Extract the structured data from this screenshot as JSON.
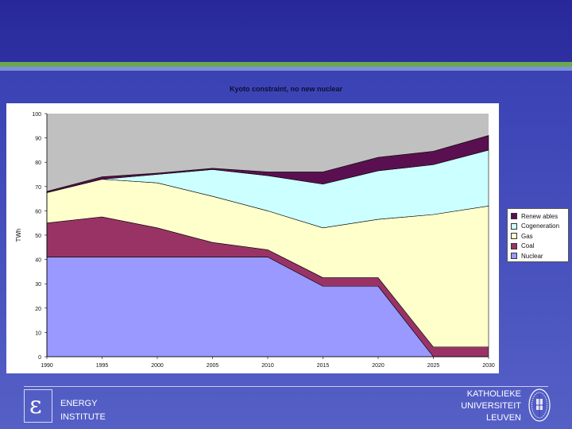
{
  "colors": {
    "background": "#3a3fb0",
    "accent_green": "#6aa84f",
    "plot_area": "#c0c0c0",
    "renewables": "#5a1050",
    "cogeneration": "#ccffff",
    "gas": "#ffffcc",
    "coal": "#993366",
    "nuclear": "#9999ff"
  },
  "chart_data": {
    "type": "area",
    "stacked": true,
    "title": "Kyoto constraint, no new nuclear",
    "xlabel": "",
    "ylabel": "TWh",
    "ylim": [
      0,
      100
    ],
    "yticks": [
      "0",
      "10",
      "20",
      "30",
      "40",
      "50",
      "60",
      "70",
      "80",
      "90",
      "100"
    ],
    "x": [
      "1990",
      "1995",
      "2000",
      "2005",
      "2010",
      "2015",
      "2020",
      "2025",
      "2030"
    ],
    "legend_position": "right",
    "series": [
      {
        "name": "Nuclear",
        "values": [
          41,
          41,
          41,
          41,
          41,
          29,
          29,
          0,
          0
        ]
      },
      {
        "name": "Coal",
        "values": [
          14,
          16.5,
          12,
          6,
          3,
          3.5,
          3.5,
          4,
          4
        ]
      },
      {
        "name": "Gas",
        "values": [
          12.5,
          15.5,
          18.5,
          19,
          16,
          20.5,
          24,
          54.5,
          58
        ]
      },
      {
        "name": "Cogeneration",
        "values": [
          0,
          0,
          3.5,
          11,
          14.5,
          18,
          20,
          20.5,
          23
        ]
      },
      {
        "name": "Renewables",
        "values": [
          0.5,
          1,
          0.5,
          0.5,
          1.5,
          5,
          5.5,
          5.5,
          6
        ]
      }
    ]
  },
  "legend_order": [
    "Renewables",
    "Cogeneration",
    "Gas",
    "Coal",
    "Nuclear"
  ],
  "legend_labels": {
    "Renewables": "Renew ables",
    "Cogeneration": "Cogeneration",
    "Gas": "Gas",
    "Coal": "Coal",
    "Nuclear": "Nuclear"
  },
  "footer": {
    "left_line1": "ENERGY",
    "left_line2": "INSTITUTE",
    "right_line1": "KATHOLIEKE",
    "right_line2": "UNIVERSITEIT",
    "right_line3": "LEUVEN",
    "logo_glyph": "ε"
  }
}
